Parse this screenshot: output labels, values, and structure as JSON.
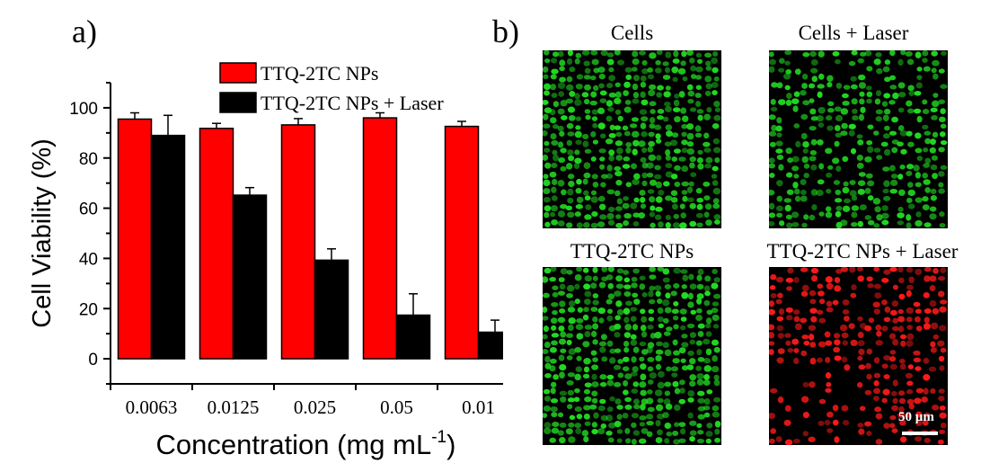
{
  "panel_labels": {
    "a": "a)",
    "b": "b)"
  },
  "chart_data": {
    "type": "bar",
    "categories": [
      "0.0063",
      "0.0125",
      "0.025",
      "0.05",
      "0.01"
    ],
    "series": [
      {
        "name": "TTQ-2TC NPs",
        "color": "#ff0000",
        "values": [
          95.5,
          91.8,
          93.2,
          96.0,
          92.6
        ],
        "errors": [
          2.5,
          2.0,
          2.5,
          2.0,
          2.0
        ]
      },
      {
        "name": "TTQ-2TC NPs + Laser",
        "color": "#000000",
        "values": [
          89.0,
          65.2,
          39.3,
          17.4,
          10.6
        ],
        "errors": [
          8.0,
          3.0,
          4.5,
          8.5,
          4.8
        ]
      }
    ],
    "ylabel": "Cell Viability (%)",
    "xlabel": "Concentration (mg mL",
    "xlabel_superscript": "-1",
    "xlabel_suffix": ")",
    "ylim": [
      -10,
      110
    ],
    "yticks": [
      0,
      20,
      40,
      60,
      80,
      100
    ],
    "grid": false,
    "legend_position": "top"
  },
  "micrographs": [
    {
      "title": "Cells",
      "stain": "#22dd22"
    },
    {
      "title": "Cells + Laser",
      "stain": "#22dd22"
    },
    {
      "title": "TTQ-2TC NPs",
      "stain": "#22dd22"
    },
    {
      "title": "TTQ-2TC NPs + Laser",
      "stain": "#ff1a1a"
    }
  ],
  "scale_bar_label": "50 µm"
}
